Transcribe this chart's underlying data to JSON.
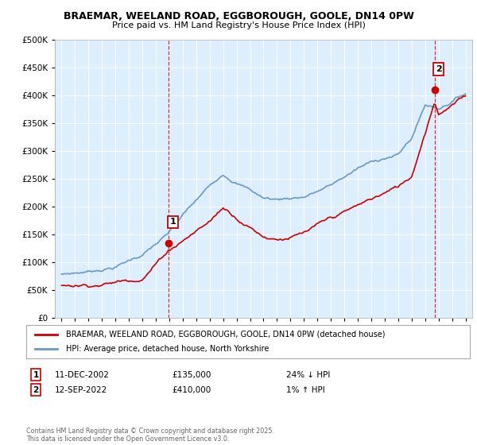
{
  "title": "BRAEMAR, WEELAND ROAD, EGGBOROUGH, GOOLE, DN14 0PW",
  "subtitle": "Price paid vs. HM Land Registry's House Price Index (HPI)",
  "legend_line1": "BRAEMAR, WEELAND ROAD, EGGBOROUGH, GOOLE, DN14 0PW (detached house)",
  "legend_line2": "HPI: Average price, detached house, North Yorkshire",
  "sale1_date": "11-DEC-2002",
  "sale1_price": "£135,000",
  "sale1_hpi": "24% ↓ HPI",
  "sale1_year": 2002.95,
  "sale1_value": 135000,
  "sale2_date": "12-SEP-2022",
  "sale2_price": "£410,000",
  "sale2_hpi": "1% ↑ HPI",
  "sale2_year": 2022.7,
  "sale2_value": 410000,
  "ylim": [
    0,
    500000
  ],
  "yticks": [
    0,
    50000,
    100000,
    150000,
    200000,
    250000,
    300000,
    350000,
    400000,
    450000,
    500000
  ],
  "xlim": [
    1994.5,
    2025.5
  ],
  "red_color": "#cc0000",
  "blue_color": "#6699cc",
  "chart_bg": "#ddeeff",
  "footer": "Contains HM Land Registry data © Crown copyright and database right 2025.\nThis data is licensed under the Open Government Licence v3.0."
}
